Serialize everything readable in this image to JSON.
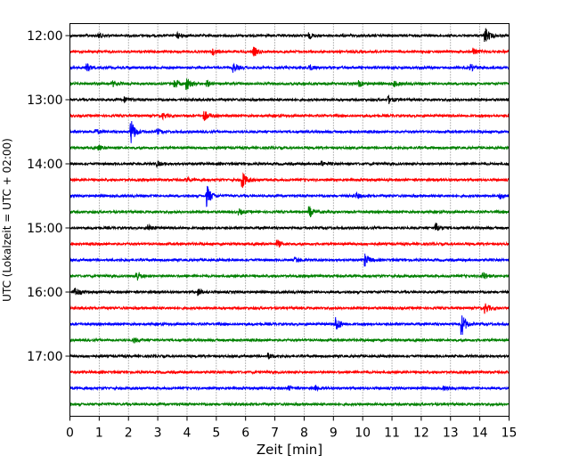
{
  "chart_data": {
    "type": "line",
    "title": "",
    "xlabel": "Zeit  [min]",
    "ylabel": "UTC (Lokalzeit = UTC + 02:00)",
    "xlim": [
      0,
      15
    ],
    "x_ticks": [
      0,
      1,
      2,
      3,
      4,
      5,
      6,
      7,
      8,
      9,
      10,
      11,
      12,
      13,
      14,
      15
    ],
    "x_tick_labels": [
      "0",
      "1",
      "2",
      "3",
      "4",
      "5",
      "6",
      "7",
      "8",
      "9",
      "10",
      "11",
      "12",
      "13",
      "14",
      "15"
    ],
    "y_ticks": [
      {
        "label": "12:00",
        "row": 0
      },
      {
        "label": "13:00",
        "row": 4
      },
      {
        "label": "14:00",
        "row": 8
      },
      {
        "label": "15:00",
        "row": 12
      },
      {
        "label": "16:00",
        "row": 16
      },
      {
        "label": "17:00",
        "row": 20
      }
    ],
    "row_interval_min": 15,
    "color_cycle": [
      "#000000",
      "#ff0000",
      "#0000ff",
      "#008000"
    ],
    "x_grid": "dotted",
    "traces": [
      {
        "start": "12:00",
        "events": [
          [
            1.0,
            0.3
          ],
          [
            3.7,
            0.3
          ],
          [
            8.2,
            0.3
          ],
          [
            14.2,
            0.9
          ]
        ]
      },
      {
        "start": "12:15",
        "events": [
          [
            4.9,
            0.3
          ],
          [
            6.3,
            0.5
          ],
          [
            13.8,
            0.4
          ]
        ]
      },
      {
        "start": "12:30",
        "events": [
          [
            0.6,
            0.4
          ],
          [
            5.6,
            0.5
          ],
          [
            8.2,
            0.3
          ],
          [
            13.7,
            0.4
          ]
        ]
      },
      {
        "start": "12:45",
        "events": [
          [
            1.5,
            0.3
          ],
          [
            3.6,
            0.5
          ],
          [
            4.0,
            0.7
          ],
          [
            4.7,
            0.3
          ],
          [
            9.9,
            0.3
          ],
          [
            11.1,
            0.3
          ]
        ]
      },
      {
        "start": "13:00",
        "events": [
          [
            1.9,
            0.3
          ],
          [
            10.9,
            0.4
          ]
        ]
      },
      {
        "start": "13:15",
        "events": [
          [
            3.2,
            0.3
          ],
          [
            4.6,
            0.6
          ]
        ]
      },
      {
        "start": "13:30",
        "events": [
          [
            0.9,
            0.3
          ],
          [
            2.1,
            1.4
          ],
          [
            3.0,
            0.3
          ]
        ]
      },
      {
        "start": "13:45",
        "events": [
          [
            1.0,
            0.3
          ]
        ]
      },
      {
        "start": "14:00",
        "events": [
          [
            3.0,
            0.3
          ],
          [
            8.6,
            0.3
          ]
        ]
      },
      {
        "start": "14:15",
        "events": [
          [
            4.0,
            0.3
          ],
          [
            5.9,
            1.0
          ]
        ]
      },
      {
        "start": "14:30",
        "events": [
          [
            4.7,
            1.2
          ],
          [
            9.8,
            0.3
          ],
          [
            14.7,
            0.3
          ]
        ]
      },
      {
        "start": "14:45",
        "events": [
          [
            5.8,
            0.3
          ],
          [
            8.2,
            0.6
          ]
        ]
      },
      {
        "start": "15:00",
        "events": [
          [
            2.7,
            0.3
          ],
          [
            12.5,
            0.6
          ]
        ]
      },
      {
        "start": "15:15",
        "events": [
          [
            7.1,
            0.4
          ]
        ]
      },
      {
        "start": "15:30",
        "events": [
          [
            7.7,
            0.3
          ],
          [
            10.1,
            0.7
          ]
        ]
      },
      {
        "start": "15:45",
        "events": [
          [
            2.3,
            0.6
          ],
          [
            14.1,
            0.5
          ]
        ]
      },
      {
        "start": "16:00",
        "events": [
          [
            0.2,
            0.5
          ],
          [
            4.4,
            0.4
          ]
        ]
      },
      {
        "start": "16:15",
        "events": [
          [
            14.2,
            0.6
          ]
        ]
      },
      {
        "start": "16:30",
        "events": [
          [
            9.1,
            0.9
          ],
          [
            13.4,
            1.3
          ]
        ]
      },
      {
        "start": "16:45",
        "events": [
          [
            2.2,
            0.3
          ]
        ]
      },
      {
        "start": "17:00",
        "events": [
          [
            6.8,
            0.3
          ]
        ]
      },
      {
        "start": "17:15",
        "events": []
      },
      {
        "start": "17:30",
        "events": [
          [
            7.5,
            0.2
          ],
          [
            8.4,
            0.2
          ],
          [
            12.8,
            0.2
          ]
        ]
      },
      {
        "start": "17:45",
        "events": []
      }
    ]
  }
}
